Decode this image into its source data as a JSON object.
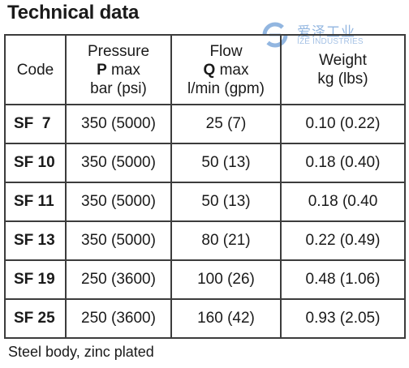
{
  "title": "Technical data",
  "watermark": {
    "chinese_text": "爱泽工业",
    "english_text": "IZE INDUSTRIES",
    "logo_color": "#3a7bc8"
  },
  "table": {
    "headers": {
      "code": "Code",
      "pressure": {
        "line1": "Pressure",
        "symbol": "P",
        "suffix": " max",
        "unit": "bar (psi)"
      },
      "flow": {
        "line1": "Flow",
        "symbol": "Q",
        "suffix": " max",
        "unit": "l/min (gpm)"
      },
      "weight": {
        "line1": "Weight",
        "unit": "kg (lbs)"
      }
    },
    "rows": [
      {
        "code": "SF  7",
        "pressure": "350 (5000)",
        "flow": "25 (7)",
        "weight": "0.10 (0.22)"
      },
      {
        "code": "SF 10",
        "pressure": "350 (5000)",
        "flow": "50 (13)",
        "weight": "0.18 (0.40)"
      },
      {
        "code": "SF 11",
        "pressure": "350 (5000)",
        "flow": "50 (13)",
        "weight": "0.18 (0.40"
      },
      {
        "code": "SF 13",
        "pressure": "350 (5000)",
        "flow": "80 (21)",
        "weight": "0.22 (0.49)"
      },
      {
        "code": "SF 19",
        "pressure": "250 (3600)",
        "flow": "100 (26)",
        "weight": "0.48 (1.06)"
      },
      {
        "code": "SF 25",
        "pressure": "250 (3600)",
        "flow": "160 (42)",
        "weight": "0.93 (2.05)"
      }
    ]
  },
  "footnote": "Steel body, zinc plated"
}
